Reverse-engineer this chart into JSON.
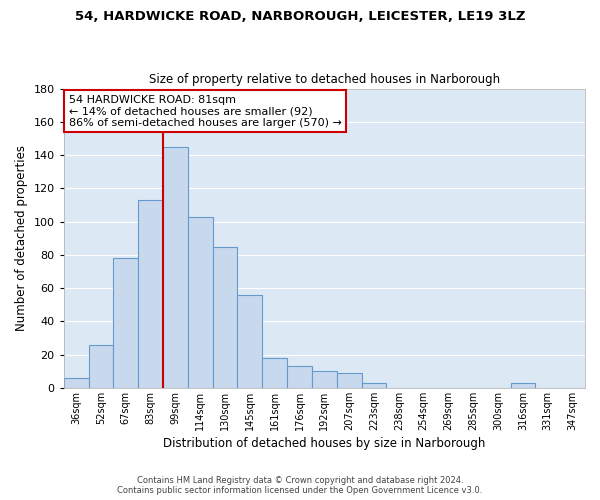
{
  "title1": "54, HARDWICKE ROAD, NARBOROUGH, LEICESTER, LE19 3LZ",
  "title2": "Size of property relative to detached houses in Narborough",
  "xlabel": "Distribution of detached houses by size in Narborough",
  "ylabel": "Number of detached properties",
  "categories": [
    "36sqm",
    "52sqm",
    "67sqm",
    "83sqm",
    "99sqm",
    "114sqm",
    "130sqm",
    "145sqm",
    "161sqm",
    "176sqm",
    "192sqm",
    "207sqm",
    "223sqm",
    "238sqm",
    "254sqm",
    "269sqm",
    "285sqm",
    "300sqm",
    "316sqm",
    "331sqm",
    "347sqm"
  ],
  "values": [
    6,
    26,
    78,
    113,
    145,
    103,
    85,
    56,
    18,
    13,
    10,
    9,
    3,
    0,
    0,
    0,
    0,
    0,
    3,
    0,
    0
  ],
  "bar_color": "#c8d9ee",
  "bar_edge_color": "#6699cc",
  "vline_color": "#cc0000",
  "annotation_text": "54 HARDWICKE ROAD: 81sqm\n← 14% of detached houses are smaller (92)\n86% of semi-detached houses are larger (570) →",
  "annotation_box_color": "#ffffff",
  "annotation_box_edge": "#cc0000",
  "ylim": [
    0,
    180
  ],
  "yticks": [
    0,
    20,
    40,
    60,
    80,
    100,
    120,
    140,
    160,
    180
  ],
  "footer1": "Contains HM Land Registry data © Crown copyright and database right 2024.",
  "footer2": "Contains public sector information licensed under the Open Government Licence v3.0.",
  "background_color": "#ffffff",
  "plot_bg_color": "#dce9f5",
  "grid_color": "#ffffff"
}
